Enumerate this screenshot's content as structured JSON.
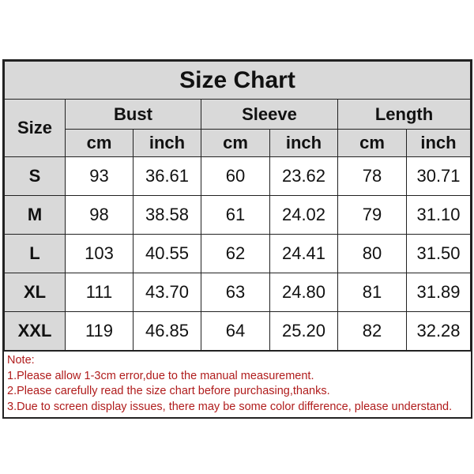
{
  "title": "Size Chart",
  "headers": {
    "size": "Size",
    "groups": [
      "Bust",
      "Sleeve",
      "Length"
    ],
    "units": [
      "cm",
      "inch",
      "cm",
      "inch",
      "cm",
      "inch"
    ]
  },
  "rows": [
    {
      "size": "S",
      "values": [
        "93",
        "36.61",
        "60",
        "23.62",
        "78",
        "30.71"
      ]
    },
    {
      "size": "M",
      "values": [
        "98",
        "38.58",
        "61",
        "24.02",
        "79",
        "31.10"
      ]
    },
    {
      "size": "L",
      "values": [
        "103",
        "40.55",
        "62",
        "24.41",
        "80",
        "31.50"
      ]
    },
    {
      "size": "XL",
      "values": [
        "111",
        "43.70",
        "63",
        "24.80",
        "81",
        "31.89"
      ]
    },
    {
      "size": "XXL",
      "values": [
        "119",
        "46.85",
        "64",
        "25.20",
        "82",
        "32.28"
      ]
    }
  ],
  "notes": {
    "heading": "Note:",
    "items": [
      "1.Please allow 1-3cm error,due to the manual measurement.",
      "2.Please carefully read the size chart before purchasing,thanks.",
      "3.Due to screen display issues, there may be some color difference, please understand."
    ]
  },
  "colors": {
    "header_fill": "#d9d9d9",
    "note_text": "#b01c1c",
    "border": "#222222"
  }
}
